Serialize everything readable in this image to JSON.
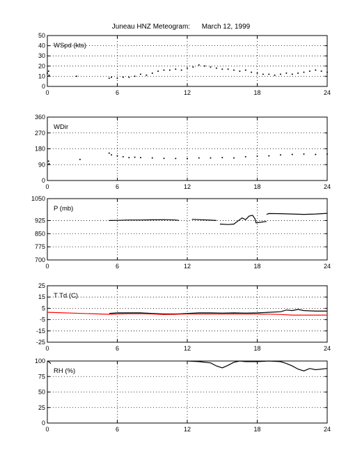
{
  "title": "Juneau HNZ Meteogram:      March 12, 1999",
  "chart_data": [
    {
      "type": "scatter",
      "label": "WSpd (kts)",
      "xlim": [
        0,
        24
      ],
      "ylim": [
        0,
        50
      ],
      "xticks": [
        "0",
        "6",
        "12",
        "18",
        "24"
      ],
      "yticks": [
        "0",
        "10",
        "20",
        "30",
        "40",
        "50"
      ],
      "grid": true,
      "series": [
        {
          "color": "#000000",
          "points": [
            [
              0.0,
              13
            ],
            [
              0.1,
              15
            ],
            [
              0.15,
              11
            ],
            [
              2.5,
              10
            ],
            [
              5.3,
              8
            ],
            [
              5.5,
              9
            ],
            [
              6.0,
              8
            ],
            [
              6.5,
              9
            ],
            [
              7.0,
              9
            ],
            [
              7.5,
              10
            ],
            [
              8.0,
              12
            ],
            [
              8.5,
              11
            ],
            [
              9.0,
              13
            ],
            [
              9.5,
              15
            ],
            [
              10.0,
              16
            ],
            [
              10.5,
              16
            ],
            [
              11.0,
              17
            ],
            [
              11.5,
              16
            ],
            [
              12.0,
              18
            ],
            [
              12.5,
              19
            ],
            [
              13.0,
              21
            ],
            [
              13.5,
              20
            ],
            [
              14.0,
              19
            ],
            [
              14.5,
              18
            ],
            [
              15.0,
              17
            ],
            [
              15.5,
              17
            ],
            [
              16.0,
              16
            ],
            [
              16.5,
              15
            ],
            [
              17.0,
              16
            ],
            [
              17.5,
              14
            ],
            [
              18.0,
              13
            ],
            [
              18.5,
              12
            ],
            [
              19.0,
              12
            ],
            [
              19.5,
              11
            ],
            [
              20.0,
              12
            ],
            [
              20.5,
              13
            ],
            [
              21.0,
              12
            ],
            [
              21.5,
              13
            ],
            [
              22.0,
              14
            ],
            [
              22.5,
              15
            ],
            [
              23.0,
              16
            ],
            [
              23.5,
              15
            ],
            [
              24.0,
              14
            ]
          ]
        }
      ]
    },
    {
      "type": "scatter",
      "label": "WDir",
      "xlim": [
        0,
        24
      ],
      "ylim": [
        0,
        360
      ],
      "xticks": [
        "0",
        "6",
        "12",
        "18",
        "24"
      ],
      "yticks": [
        "0",
        "90",
        "180",
        "270",
        "360"
      ],
      "grid": true,
      "series": [
        {
          "color": "#000000",
          "points": [
            [
              0.1,
              110
            ],
            [
              0.15,
              95
            ],
            [
              2.8,
              120
            ],
            [
              5.3,
              155
            ],
            [
              5.5,
              145
            ],
            [
              6.0,
              140
            ],
            [
              6.5,
              135
            ],
            [
              7.0,
              130
            ],
            [
              7.5,
              132
            ],
            [
              8.0,
              130
            ],
            [
              9.0,
              128
            ],
            [
              10.0,
              126
            ],
            [
              11.0,
              125
            ],
            [
              12.0,
              125
            ],
            [
              13.0,
              128
            ],
            [
              14.0,
              128
            ],
            [
              15.0,
              130
            ],
            [
              16.0,
              128
            ],
            [
              17.0,
              135
            ],
            [
              18.0,
              138
            ],
            [
              19.0,
              140
            ],
            [
              20.0,
              145
            ],
            [
              21.0,
              148
            ],
            [
              22.0,
              150
            ],
            [
              23.0,
              148
            ],
            [
              24.0,
              150
            ]
          ]
        }
      ]
    },
    {
      "type": "line",
      "label": "P (mb)",
      "xlim": [
        0,
        24
      ],
      "ylim": [
        700,
        1050
      ],
      "xticks": [
        "0",
        "6",
        "12",
        "18",
        "24"
      ],
      "yticks": [
        "700",
        "775",
        "850",
        "925",
        "1050"
      ],
      "grid": true,
      "series": [
        {
          "color": "#000000",
          "points": [
            [
              5.3,
              925
            ],
            [
              6,
              926
            ],
            [
              7,
              928
            ],
            [
              8,
              928
            ],
            [
              9,
              929
            ],
            [
              10,
              930
            ],
            [
              11,
              928
            ],
            [
              11.3,
              925
            ]
          ]
        },
        {
          "color": "#000000",
          "points": [
            [
              12.4,
              932
            ],
            [
              13,
              930
            ],
            [
              14,
              927
            ],
            [
              14.5,
              925
            ]
          ]
        },
        {
          "color": "#000000",
          "points": [
            [
              14.8,
              905
            ],
            [
              15.5,
              902
            ],
            [
              16,
              905
            ],
            [
              16.3,
              920
            ],
            [
              16.7,
              940
            ],
            [
              17,
              930
            ],
            [
              17.3,
              950
            ],
            [
              17.6,
              955
            ],
            [
              17.8,
              935
            ],
            [
              17.9,
              912
            ],
            [
              18.3,
              915
            ],
            [
              18.8,
              920
            ]
          ]
        },
        {
          "color": "#000000",
          "points": [
            [
              18.8,
              960
            ],
            [
              19,
              965
            ],
            [
              20,
              964
            ],
            [
              21,
              962
            ],
            [
              22,
              960
            ],
            [
              23,
              962
            ],
            [
              24,
              966
            ]
          ]
        }
      ]
    },
    {
      "type": "line",
      "label": "T Td (C)",
      "xlim": [
        0,
        24
      ],
      "ylim": [
        -25,
        25
      ],
      "xticks": [
        "0",
        "6",
        "12",
        "18",
        "24"
      ],
      "yticks": [
        "-25",
        "-15",
        "-5",
        "5",
        "15",
        "25"
      ],
      "grid": true,
      "series": [
        {
          "color": "#000000",
          "points": [
            [
              5.3,
              0.5
            ],
            [
              6,
              1
            ],
            [
              7,
              1
            ],
            [
              8,
              1
            ],
            [
              9,
              0.5
            ],
            [
              10,
              0
            ],
            [
              11,
              0
            ],
            [
              12,
              0.5
            ],
            [
              13,
              1
            ],
            [
              14,
              1
            ],
            [
              15,
              0.8
            ],
            [
              16,
              1
            ],
            [
              17,
              0.8
            ],
            [
              18,
              1
            ],
            [
              19,
              1.5
            ],
            [
              20,
              2
            ],
            [
              20.5,
              3.5
            ],
            [
              21,
              3
            ],
            [
              21.5,
              4
            ],
            [
              22,
              3
            ],
            [
              23,
              2.5
            ],
            [
              24,
              2.5
            ]
          ]
        },
        {
          "color": "#ff0000",
          "points": [
            [
              0.05,
              1.5
            ],
            [
              5.3,
              -0.3
            ],
            [
              6,
              0
            ],
            [
              7,
              0.2
            ],
            [
              8,
              0.2
            ],
            [
              9,
              0
            ],
            [
              10,
              -0.5
            ],
            [
              11,
              -0.3
            ],
            [
              12,
              0
            ],
            [
              13,
              0
            ],
            [
              14,
              0
            ],
            [
              15,
              0
            ],
            [
              16,
              0
            ],
            [
              17,
              0
            ],
            [
              18,
              0
            ],
            [
              19,
              -0.2
            ],
            [
              20,
              -0.5
            ],
            [
              21,
              -1
            ],
            [
              22,
              -1
            ],
            [
              23,
              -1
            ],
            [
              24,
              -1
            ]
          ]
        }
      ]
    },
    {
      "type": "line",
      "label": "RH (%)",
      "xlim": [
        0,
        24
      ],
      "ylim": [
        0,
        100
      ],
      "xticks": [
        "0",
        "6",
        "12",
        "18",
        "24"
      ],
      "yticks": [
        "0",
        "25",
        "50",
        "75",
        "100"
      ],
      "grid": true,
      "series": [
        {
          "color": "#000000",
          "points": [
            [
              0.05,
              100
            ],
            [
              0.3,
              96
            ]
          ]
        },
        {
          "color": "#000000",
          "points": [
            [
              12,
              100
            ],
            [
              13,
              99
            ],
            [
              14,
              97
            ],
            [
              14.5,
              92
            ],
            [
              15,
              89
            ],
            [
              15.5,
              93
            ],
            [
              16,
              98
            ],
            [
              16.5,
              100
            ],
            [
              17,
              99
            ],
            [
              18,
              99
            ],
            [
              19,
              100
            ],
            [
              20,
              99
            ],
            [
              20.5,
              96
            ],
            [
              21,
              92
            ],
            [
              21.5,
              87
            ],
            [
              22,
              84
            ],
            [
              22.5,
              88
            ],
            [
              23,
              86
            ],
            [
              24,
              88
            ]
          ]
        }
      ]
    }
  ]
}
